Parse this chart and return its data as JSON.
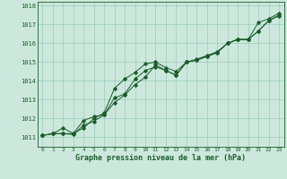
{
  "title": "Graphe pression niveau de la mer (hPa)",
  "background_color": "#cce8dc",
  "plot_bg_color": "#cce8dc",
  "grid_color": "#99ccbb",
  "line_color": "#1a5c2a",
  "xlim": [
    -0.5,
    23.5
  ],
  "ylim": [
    1010.5,
    1018.2
  ],
  "yticks": [
    1011,
    1012,
    1013,
    1014,
    1015,
    1016,
    1017,
    1018
  ],
  "xticks": [
    0,
    1,
    2,
    3,
    4,
    5,
    6,
    7,
    8,
    9,
    10,
    11,
    12,
    13,
    14,
    15,
    16,
    17,
    18,
    19,
    20,
    21,
    22,
    23
  ],
  "series1": [
    1011.1,
    1011.2,
    1011.2,
    1011.2,
    1011.5,
    1012.0,
    1012.3,
    1013.6,
    1014.1,
    1014.45,
    1014.9,
    1015.0,
    1014.7,
    1014.5,
    1015.0,
    1015.1,
    1015.3,
    1015.5,
    1016.0,
    1016.2,
    1016.2,
    1017.1,
    1017.3,
    1017.6
  ],
  "series2": [
    1011.1,
    1011.2,
    1011.2,
    1011.15,
    1011.65,
    1011.85,
    1012.2,
    1012.85,
    1013.25,
    1013.8,
    1014.2,
    1014.85,
    1014.55,
    1014.3,
    1015.0,
    1015.1,
    1015.3,
    1015.5,
    1016.0,
    1016.2,
    1016.2,
    1016.65,
    1017.2,
    1017.45
  ],
  "series3": [
    1011.1,
    1011.2,
    1011.5,
    1011.2,
    1011.9,
    1012.1,
    1012.2,
    1013.1,
    1013.3,
    1014.1,
    1014.55,
    1014.75,
    1014.55,
    1014.3,
    1015.0,
    1015.15,
    1015.35,
    1015.55,
    1016.0,
    1016.2,
    1016.2,
    1016.65,
    1017.2,
    1017.5
  ]
}
